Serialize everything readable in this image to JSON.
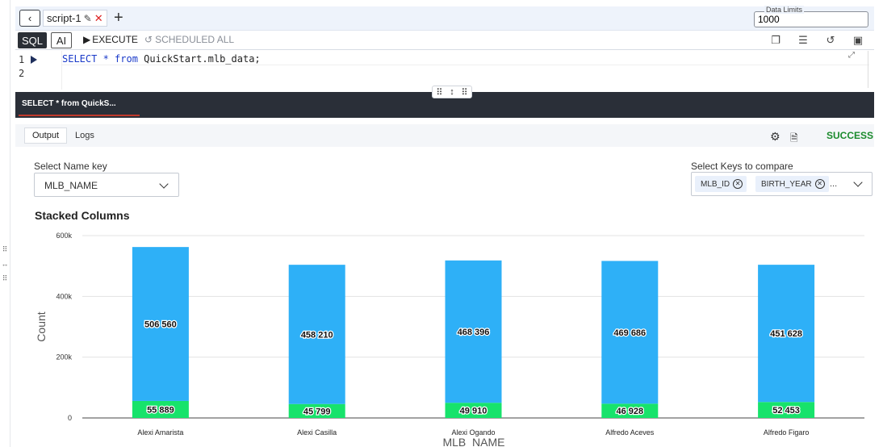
{
  "tabbar": {
    "tab_label": "script-1",
    "data_limits_label": "Data Limits",
    "data_limits_value": "1000"
  },
  "toolbar": {
    "sql_label": "SQL",
    "ai_label": "AI",
    "execute_label": "EXECUTE",
    "scheduled_label": "SCHEDULED ALL"
  },
  "editor": {
    "line_numbers": [
      "1",
      "2"
    ],
    "query_kw1": "SELECT * ",
    "query_kw2": "from",
    "query_rest": " QuickStart.mlb_data;"
  },
  "results": {
    "title": "SELECT * from QuickS...",
    "tab_output": "Output",
    "tab_logs": "Logs",
    "status": "SUCCESS"
  },
  "controls": {
    "name_key_label": "Select Name key",
    "name_key_value": "MLB_NAME",
    "compare_label": "Select Keys to compare",
    "compare_chips": [
      "MLB_ID",
      "BIRTH_YEAR"
    ],
    "more": "..."
  },
  "chart_title": "Stacked Columns",
  "chart_data": {
    "type": "bar",
    "stacked": true,
    "categories": [
      "Alexi Amarista",
      "Alexi Casilla",
      "Alexi Ogando",
      "Alfredo Aceves",
      "Alfredo Figaro"
    ],
    "series": [
      {
        "color": "#17e36b",
        "values": [
          55889,
          45799,
          49910,
          46928,
          52453
        ]
      },
      {
        "color": "#2eb0f7",
        "values": [
          506560,
          458210,
          468396,
          469686,
          451628
        ]
      }
    ],
    "value_labels_bottom": [
      "55 889",
      "45 799",
      "49 910",
      "46 928",
      "52 453"
    ],
    "value_labels_top": [
      "506 560",
      "458 210",
      "468 396",
      "469 686",
      "451 628"
    ],
    "xlabel": "MLB_NAME",
    "ylabel": "Count",
    "ylim": [
      0,
      600000
    ],
    "yticks": [
      0,
      200000,
      400000,
      600000
    ],
    "ytick_labels": [
      "0",
      "200k",
      "400k",
      "600k"
    ],
    "grid": true
  }
}
